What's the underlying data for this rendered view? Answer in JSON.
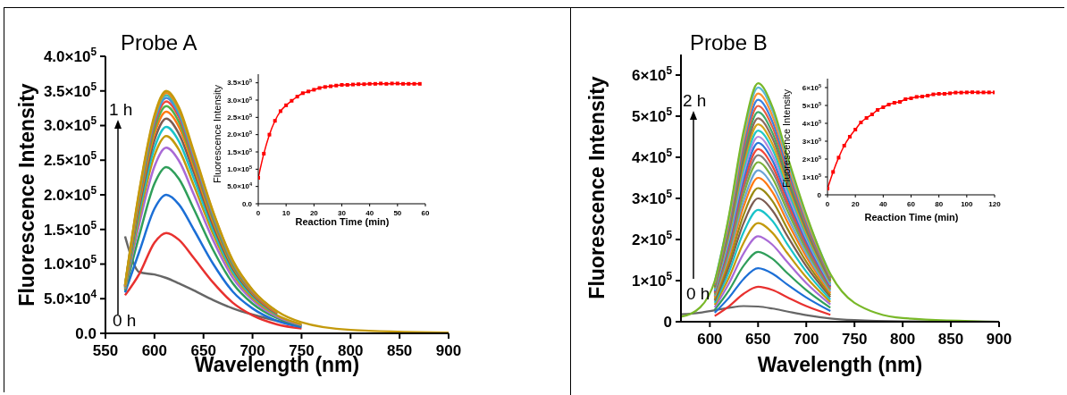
{
  "chart_data": [
    {
      "type": "line",
      "title": "Probe A",
      "xlabel": "Wavelength (nm)",
      "ylabel": "Fluorescence Intensity",
      "annotations": [
        "1 h",
        "0 h"
      ],
      "x": [
        570,
        585,
        600,
        612,
        625,
        640,
        660,
        680,
        700,
        725,
        750,
        800,
        900
      ],
      "xlim": [
        550,
        900
      ],
      "xticks": [
        550,
        600,
        650,
        700,
        750,
        800,
        850,
        900
      ],
      "ylim": [
        0,
        400000
      ],
      "yticks": [
        {
          "value": 0,
          "label": "0.0"
        },
        {
          "value": 50000,
          "label": "5.0×10$^{4}$"
        },
        {
          "value": 100000,
          "label": "1.0×10$^{5}$"
        },
        {
          "value": 150000,
          "label": "1.5×10$^{5}$"
        },
        {
          "value": 200000,
          "label": "2.0×10$^{5}$"
        },
        {
          "value": 250000,
          "label": "2.5×10$^{5}$"
        },
        {
          "value": 300000,
          "label": "3.0×10$^{5}$"
        },
        {
          "value": 350000,
          "label": "3.5×10$^{5}$"
        },
        {
          "value": 400000,
          "label": "4.0×10$^{5}$"
        }
      ],
      "series": [
        {
          "color": "#666666",
          "values": [
            140000.0,
            88000.0,
            85000.0,
            80000.0,
            72000.0,
            62000.0,
            48000.0,
            36000.0,
            27000.0,
            18000.0,
            11000.0,
            null,
            null
          ]
        },
        {
          "color": "#e8312f",
          "values": [
            55000.0,
            87000.0,
            131000.0,
            145000.0,
            135000.0,
            109000.0,
            73000.0,
            44000.0,
            26000.0,
            13000.0,
            7000.0,
            null,
            null
          ]
        },
        {
          "color": "#1c6fd6",
          "values": [
            59000.0,
            120000.0,
            180000.0,
            200000.0,
            186000.0,
            150000.0,
            100000.0,
            60000.0,
            36000.0,
            18000.0,
            9000.0,
            null,
            null
          ]
        },
        {
          "color": "#2f9e5a",
          "values": [
            62000.0,
            144000.0,
            216000.0,
            240000.0,
            223000.0,
            180000.0,
            120000.0,
            72000.0,
            43000.0,
            22000.0,
            11000.0,
            null,
            null
          ]
        },
        {
          "color": "#a96ad6",
          "values": [
            64000.0,
            161000.0,
            241000.0,
            268000.0,
            249000.0,
            201000.0,
            134000.0,
            80000.0,
            48000.0,
            24000.0,
            12000.0,
            null,
            null
          ]
        },
        {
          "color": "#c39a0c",
          "values": [
            65000.0,
            171000.0,
            257000.0,
            285000.0,
            265000.0,
            214000.0,
            143000.0,
            86000.0,
            51000.0,
            26000.0,
            13000.0,
            null,
            null
          ]
        },
        {
          "color": "#19c3c9",
          "values": [
            66000.0,
            179000.0,
            268000.0,
            298000.0,
            277000.0,
            224000.0,
            149000.0,
            89000.0,
            54000.0,
            27000.0,
            null,
            null,
            null
          ]
        },
        {
          "color": "#7c5c52",
          "values": [
            67000.0,
            186000.0,
            279000.0,
            310000.0,
            288000.0,
            233000.0,
            155000.0,
            93000.0,
            56000.0,
            28000.0,
            null,
            null,
            null
          ]
        },
        {
          "color": "#ff7a12",
          "values": [
            67000.0,
            192000.0,
            288000.0,
            320000.0,
            298000.0,
            240000.0,
            160000.0,
            96000.0,
            58000.0,
            29000.0,
            null,
            null,
            null
          ]
        },
        {
          "color": "#52b04c",
          "values": [
            68000.0,
            197000.0,
            295000.0,
            328000.0,
            305000.0,
            246000.0,
            164000.0,
            98000.0,
            59000.0,
            30000.0,
            null,
            null,
            null
          ]
        },
        {
          "color": "#f0473a",
          "values": [
            68000.0,
            201000.0,
            302000.0,
            335000.0,
            312000.0,
            251000.0,
            168000.0,
            101000.0,
            60000.0,
            30000.0,
            null,
            null,
            null
          ]
        },
        {
          "color": "#4a89dc",
          "values": [
            69000.0,
            204000.0,
            306000.0,
            340000.0,
            316000.0,
            255000.0,
            170000.0,
            102000.0,
            61000.0,
            31000.0,
            null,
            null,
            null
          ]
        },
        {
          "color": "#39c0b0",
          "values": [
            69000.0,
            206000.0,
            310000.0,
            344000.0,
            320000.0,
            258000.0,
            172000.0,
            103000.0,
            62000.0,
            31000.0,
            null,
            null,
            null
          ]
        },
        {
          "color": "#e88c20",
          "values": [
            69000.0,
            208000.0,
            312000.0,
            347000.0,
            323000.0,
            260000.0,
            174000.0,
            104000.0,
            62000.0,
            31000.0,
            null,
            null,
            null
          ]
        },
        {
          "color": "#c49a0c",
          "values": [
            70000.0,
            210000.0,
            315000.0,
            350000.0,
            326000.0,
            263000.0,
            175000.0,
            105000.0,
            63000.0,
            32000.0,
            16000.0,
            5000.0,
            1000.0
          ]
        }
      ]
    },
    {
      "type": "line",
      "xlabel": "Reaction Time (min)",
      "ylabel": "Fluorescence Intensity",
      "marker": "square",
      "color": "#ff0000",
      "x": [
        0,
        2,
        4,
        6,
        8,
        10,
        12,
        14,
        16,
        18,
        20,
        22,
        24,
        26,
        28,
        30,
        32,
        34,
        36,
        38,
        40,
        42,
        44,
        46,
        48,
        50,
        52,
        54,
        56,
        58
      ],
      "values": [
        75000.0,
        145000.0,
        200000.0,
        240000.0,
        268000.0,
        285000.0,
        298000.0,
        310000.0,
        320000.0,
        325000.0,
        330000.0,
        335000.0,
        338000.0,
        340000.0,
        342000.0,
        344000.0,
        344000.0,
        345000.0,
        346000.0,
        346000.0,
        347000.0,
        347000.0,
        348000.0,
        347000.0,
        348000.0,
        348000.0,
        347000.0,
        347000.0,
        347000.0,
        347000.0
      ],
      "xlim": [
        0,
        60
      ],
      "xticks": [
        0,
        10,
        20,
        30,
        40,
        50,
        60
      ],
      "ylim": [
        0,
        375000
      ],
      "yticks": [
        {
          "value": 0,
          "label": "0.0"
        },
        {
          "value": 50000,
          "label": "5.0×10$^{4}$"
        },
        {
          "value": 100000,
          "label": "1.0×10$^{5}$"
        },
        {
          "value": 150000,
          "label": "1.5×10$^{5}$"
        },
        {
          "value": 200000,
          "label": "2.0×10$^{5}$"
        },
        {
          "value": 250000,
          "label": "2.5×10$^{5}$"
        },
        {
          "value": 300000,
          "label": "3.0×10$^{5}$"
        },
        {
          "value": 350000,
          "label": "3.5×10$^{5}$"
        }
      ]
    },
    {
      "type": "line",
      "title": "Probe B",
      "xlabel": "Wavelength (nm)",
      "ylabel": "Fluorescence Intensity",
      "annotations": [
        "2 h",
        "0 h"
      ],
      "x": [
        570,
        590,
        605,
        620,
        635,
        650,
        665,
        680,
        700,
        725,
        750,
        800,
        900
      ],
      "xlim": [
        570,
        900
      ],
      "xticks": [
        600,
        650,
        700,
        750,
        800,
        850,
        900
      ],
      "ylim": [
        0,
        650000
      ],
      "yticks": [
        0,
        {
          "value": 100000,
          "label": "1×10$^{5}$"
        },
        {
          "value": 200000,
          "label": "2×10$^{5}$"
        },
        {
          "value": 300000,
          "label": "3×10$^{5}$"
        },
        {
          "value": 400000,
          "label": "4×10$^{5}$"
        },
        {
          "value": 500000,
          "label": "5×10$^{5}$"
        },
        {
          "value": 600000,
          "label": "6×10$^{5}$"
        }
      ],
      "series": [
        {
          "color": "#666666",
          "values": [
            18000.0,
            22000.0,
            28000.0,
            34000.0,
            38000.0,
            37000.0,
            32000.0,
            25000.0,
            16000.0,
            8000.0,
            4000.0,
            1000.0,
            0
          ]
        },
        {
          "color": "#e8312f",
          "values": [
            null,
            null,
            14000.0,
            38000.0,
            68000.0,
            85000.0,
            77000.0,
            60000.0,
            38000.0,
            17000.0,
            null,
            null,
            null
          ]
        },
        {
          "color": "#1c6fd6",
          "values": [
            null,
            null,
            22000.0,
            59000.0,
            104000.0,
            130000.0,
            117000.0,
            91000.0,
            59000.0,
            26000.0,
            null,
            null,
            null
          ]
        },
        {
          "color": "#2f9e5a",
          "values": [
            null,
            null,
            29000.0,
            77000.0,
            136000.0,
            170000.0,
            153000.0,
            119000.0,
            77000.0,
            34000.0,
            null,
            null,
            null
          ]
        },
        {
          "color": "#a96ad6",
          "values": [
            null,
            null,
            35000.0,
            94000.0,
            166000.0,
            208000.0,
            187000.0,
            146000.0,
            94000.0,
            42000.0,
            null,
            null,
            null
          ]
        },
        {
          "color": "#c39a0c",
          "values": [
            null,
            null,
            41000.0,
            108000.0,
            192000.0,
            240000.0,
            216000.0,
            168000.0,
            108000.0,
            48000.0,
            null,
            null,
            null
          ]
        },
        {
          "color": "#19c3c9",
          "values": [
            null,
            null,
            46000.0,
            122000.0,
            218000.0,
            272000.0,
            245000.0,
            190000.0,
            122000.0,
            54000.0,
            null,
            null,
            null
          ]
        },
        {
          "color": "#7c5c52",
          "values": [
            null,
            null,
            51000.0,
            135000.0,
            240000.0,
            300000.0,
            270000.0,
            210000.0,
            135000.0,
            60000.0,
            null,
            null,
            null
          ]
        },
        {
          "color": "#9a8a14",
          "values": [
            null,
            null,
            55000.0,
            146000.0,
            260000.0,
            325000.0,
            293000.0,
            228000.0,
            146000.0,
            65000.0,
            null,
            null,
            null
          ]
        },
        {
          "color": "#ff7a12",
          "values": [
            null,
            null,
            60000.0,
            158000.0,
            280000.0,
            350000.0,
            315000.0,
            245000.0,
            158000.0,
            70000.0,
            null,
            null,
            null
          ]
        },
        {
          "color": "#6ba3d6",
          "values": [
            null,
            null,
            63000.0,
            166000.0,
            294000.0,
            368000.0,
            331000.0,
            258000.0,
            166000.0,
            74000.0,
            null,
            null,
            null
          ]
        },
        {
          "color": "#7ab03a",
          "values": [
            null,
            null,
            66000.0,
            175000.0,
            310000.0,
            388000.0,
            349000.0,
            272000.0,
            175000.0,
            78000.0,
            null,
            null,
            null
          ]
        },
        {
          "color": "#808080",
          "values": [
            null,
            null,
            69000.0,
            182000.0,
            324000.0,
            405000.0,
            365000.0,
            284000.0,
            182000.0,
            81000.0,
            null,
            null,
            null
          ]
        },
        {
          "color": "#f0473a",
          "values": [
            null,
            null,
            71000.0,
            189000.0,
            336000.0,
            420000.0,
            378000.0,
            294000.0,
            189000.0,
            84000.0,
            null,
            null,
            null
          ]
        },
        {
          "color": "#2a78d8",
          "values": [
            null,
            null,
            74000.0,
            196000.0,
            348000.0,
            435000.0,
            392000.0,
            305000.0,
            196000.0,
            87000.0,
            null,
            null,
            null
          ]
        },
        {
          "color": "#b488dc",
          "values": [
            null,
            null,
            77000.0,
            203000.0,
            360000.0,
            450000.0,
            405000.0,
            315000.0,
            203000.0,
            90000.0,
            null,
            null,
            null
          ]
        },
        {
          "color": "#22c8c8",
          "values": [
            null,
            null,
            79000.0,
            209000.0,
            372000.0,
            465000.0,
            419000.0,
            326000.0,
            209000.0,
            93000.0,
            null,
            null,
            null
          ]
        },
        {
          "color": "#d4a418",
          "values": [
            null,
            null,
            82000.0,
            216000.0,
            384000.0,
            480000.0,
            432000.0,
            336000.0,
            216000.0,
            96000.0,
            null,
            null,
            null
          ]
        },
        {
          "color": "#8a6a5e",
          "values": [
            null,
            null,
            84000.0,
            223000.0,
            396000.0,
            495000.0,
            446000.0,
            347000.0,
            223000.0,
            99000.0,
            null,
            null,
            null
          ]
        },
        {
          "color": "#3fa868",
          "values": [
            null,
            null,
            87000.0,
            230000.0,
            408000.0,
            510000.0,
            459000.0,
            357000.0,
            230000.0,
            102000.0,
            null,
            null,
            null
          ]
        },
        {
          "color": "#e85a40",
          "values": [
            null,
            null,
            89000.0,
            236000.0,
            420000.0,
            525000.0,
            473000.0,
            368000.0,
            236000.0,
            105000.0,
            null,
            null,
            null
          ]
        },
        {
          "color": "#3a80e0",
          "values": [
            null,
            null,
            92000.0,
            243000.0,
            432000.0,
            540000.0,
            486000.0,
            378000.0,
            243000.0,
            108000.0,
            null,
            null,
            null
          ]
        },
        {
          "color": "#ff9030",
          "values": [
            null,
            null,
            94000.0,
            250000.0,
            444000.0,
            555000.0,
            500000.0,
            389000.0,
            250000.0,
            111000.0,
            null,
            null,
            null
          ]
        },
        {
          "color": "#5ab8d8",
          "values": [
            null,
            null,
            97000.0,
            257000.0,
            456000.0,
            570000.0,
            513000.0,
            399000.0,
            257000.0,
            114000.0,
            null,
            null,
            null
          ]
        },
        {
          "color": "#79b829",
          "values": [
            12000.0,
            35000.0,
            99000.0,
            261000.0,
            464000.0,
            580000.0,
            522000.0,
            406000.0,
            261000.0,
            116000.0,
            46000.0,
            9000.0,
            0
          ]
        }
      ]
    },
    {
      "type": "line",
      "xlabel": "Reaction Time (min)",
      "ylabel": "Fluorescence Intensity",
      "marker": "square",
      "color": "#ff0000",
      "x": [
        0,
        4,
        8,
        12,
        16,
        20,
        24,
        28,
        32,
        36,
        40,
        44,
        48,
        52,
        56,
        60,
        64,
        68,
        72,
        76,
        80,
        84,
        88,
        92,
        96,
        100,
        104,
        108,
        112,
        116,
        120
      ],
      "values": [
        35000.0,
        128000.0,
        208000.0,
        275000.0,
        325000.0,
        365000.0,
        405000.0,
        430000.0,
        450000.0,
        475000.0,
        490000.0,
        505000.0,
        515000.0,
        520000.0,
        535000.0,
        540000.0,
        548000.0,
        550000.0,
        555000.0,
        562000.0,
        565000.0,
        565000.0,
        568000.0,
        572000.0,
        572000.0,
        573000.0,
        574000.0,
        573000.0,
        573000.0,
        573000.0,
        573000.0
      ],
      "xlim": [
        0,
        120
      ],
      "xticks": [
        0,
        20,
        40,
        60,
        80,
        100,
        120
      ],
      "ylim": [
        0,
        650000
      ],
      "yticks": [
        0,
        {
          "value": 100000,
          "label": "1×10$^{5}$"
        },
        {
          "value": 200000,
          "label": "2×10$^{5}$"
        },
        {
          "value": 300000,
          "label": "3×10$^{5}$"
        },
        {
          "value": 400000,
          "label": "4×10$^{5}$"
        },
        {
          "value": 500000,
          "label": "5×10$^{5}$"
        },
        {
          "value": 600000,
          "label": "6×10$^{5}$"
        }
      ]
    }
  ]
}
